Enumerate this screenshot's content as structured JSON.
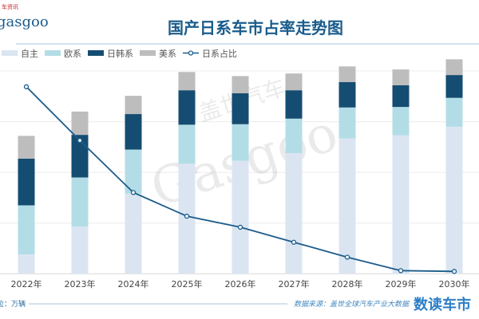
{
  "logo": {
    "text": "gasgoo",
    "small_text": "车资讯"
  },
  "watermark": {
    "cn": "盖世汽车",
    "en": "Gasgoo"
  },
  "footer": {
    "unit": "位：万辆",
    "source": "数据来源：盖世全球汽车产业大数据",
    "brand": "数读车市"
  },
  "chart_data": {
    "type": "bar",
    "stacked": true,
    "title": "国产日系车市占率走势图",
    "categories": [
      "2022年",
      "2023年",
      "2024年",
      "2025年",
      "2026年",
      "2027年",
      "2028年",
      "2029年",
      "2030年"
    ],
    "series": [
      {
        "name": "自主",
        "kind": "bar",
        "color": "#dbe5f1",
        "values": [
          38,
          93,
          158,
          217,
          223,
          238,
          267,
          273,
          290
        ]
      },
      {
        "name": "欧系",
        "kind": "bar",
        "color": "#b3dde6",
        "values": [
          97,
          97,
          87,
          77,
          72,
          68,
          61,
          56,
          57
        ]
      },
      {
        "name": "日韩系",
        "kind": "bar",
        "color": "#154d72",
        "values": [
          92,
          84,
          70,
          68,
          61,
          56,
          50,
          43,
          45
        ]
      },
      {
        "name": "美系",
        "kind": "bar",
        "color": "#bdbdbd",
        "values": [
          45,
          46,
          36,
          36,
          34,
          33,
          31,
          31,
          31
        ]
      },
      {
        "name": "日系占比",
        "kind": "line",
        "axis": "secondary",
        "unit": "%",
        "color": "#1b5c8c",
        "values": [
          34.0,
          27.2,
          20.6,
          17.6,
          16.2,
          14.3,
          12.4,
          10.7,
          10.6
        ]
      }
    ],
    "ylim": [
      0,
      400
    ],
    "y2lim": [
      10.3,
      36
    ],
    "grid": true,
    "y_tick_labels_shown": false,
    "legend": "top-left",
    "ylabel": "",
    "xlabel": ""
  }
}
